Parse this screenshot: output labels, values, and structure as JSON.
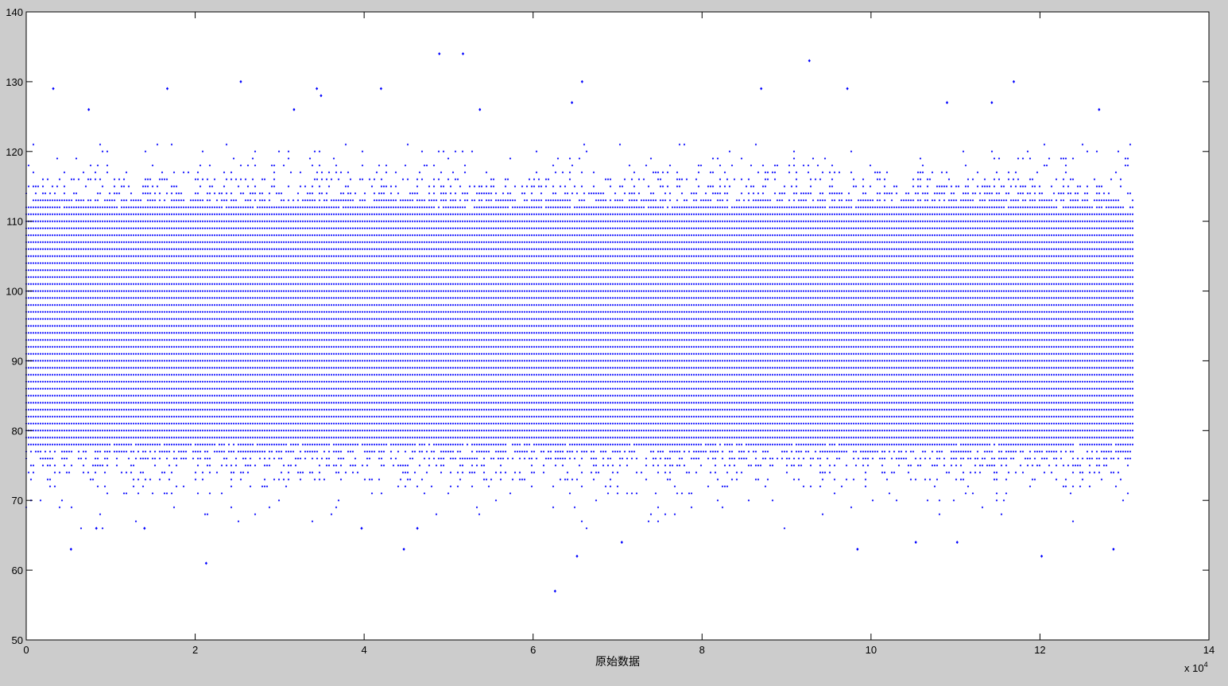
{
  "chart_data": {
    "type": "scatter",
    "title": "",
    "xlabel": "原始数据",
    "ylabel": "",
    "x_multiplier_label": "x 10",
    "x_multiplier_exponent": "4",
    "xlim": [
      0,
      140000
    ],
    "ylim": [
      50,
      140
    ],
    "x_ticks": [
      "0",
      "2",
      "4",
      "6",
      "8",
      "10",
      "12",
      "14"
    ],
    "y_ticks": [
      "50",
      "60",
      "70",
      "80",
      "90",
      "100",
      "110",
      "120",
      "130",
      "140"
    ],
    "grid": false,
    "legend": "none",
    "marker_color": "#0000ff",
    "marker": "point",
    "dense_band": {
      "x_range": [
        1,
        131000
      ],
      "value_step": 1,
      "dense_value_range": [
        79,
        111
      ],
      "sparse_value_range": [
        65,
        121
      ]
    },
    "outliers": [
      {
        "x": 3200,
        "y": 129
      },
      {
        "x": 16700,
        "y": 129
      },
      {
        "x": 25400,
        "y": 130
      },
      {
        "x": 34400,
        "y": 129
      },
      {
        "x": 42000,
        "y": 129
      },
      {
        "x": 48900,
        "y": 134
      },
      {
        "x": 51700,
        "y": 134
      },
      {
        "x": 65800,
        "y": 130
      },
      {
        "x": 87000,
        "y": 129
      },
      {
        "x": 92700,
        "y": 133
      },
      {
        "x": 97200,
        "y": 129
      },
      {
        "x": 116900,
        "y": 130
      },
      {
        "x": 62600,
        "y": 57
      },
      {
        "x": 21300,
        "y": 61
      },
      {
        "x": 120200,
        "y": 62
      },
      {
        "x": 65200,
        "y": 62
      },
      {
        "x": 5300,
        "y": 63
      },
      {
        "x": 44700,
        "y": 63
      },
      {
        "x": 98400,
        "y": 63
      },
      {
        "x": 128700,
        "y": 63
      },
      {
        "x": 34900,
        "y": 128
      },
      {
        "x": 7400,
        "y": 126
      },
      {
        "x": 31700,
        "y": 126
      },
      {
        "x": 53700,
        "y": 126
      },
      {
        "x": 64600,
        "y": 127
      },
      {
        "x": 109000,
        "y": 127
      },
      {
        "x": 114300,
        "y": 127
      },
      {
        "x": 127000,
        "y": 126
      },
      {
        "x": 8300,
        "y": 66
      },
      {
        "x": 14000,
        "y": 66
      },
      {
        "x": 39700,
        "y": 66
      },
      {
        "x": 46300,
        "y": 66
      },
      {
        "x": 105300,
        "y": 64
      },
      {
        "x": 70500,
        "y": 64
      },
      {
        "x": 110200,
        "y": 64
      }
    ]
  }
}
